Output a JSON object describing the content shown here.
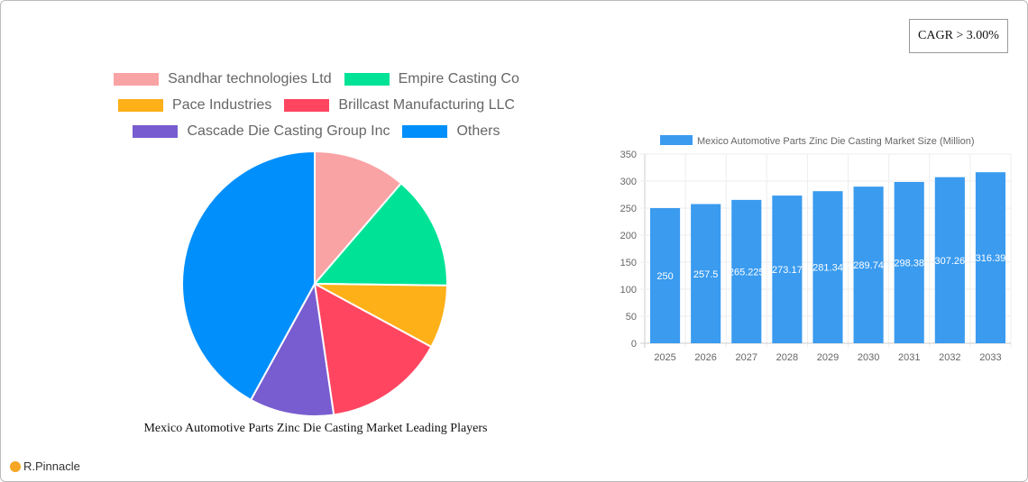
{
  "cagr_label": "CAGR > 3.00%",
  "logo_text": "R.Pinnacle",
  "chart_data": [
    {
      "type": "pie",
      "title": "Mexico Automotive Parts Zinc Die Casting Market Leading Players",
      "legend_position": "top",
      "labels": [
        "Sandhar technologies Ltd",
        "Empire Casting Co",
        "Pace Industries",
        "Brillcast Manufacturing LLC",
        "Cascade Die Casting Group Inc",
        "Others"
      ],
      "values": [
        11.3,
        13.9,
        7.7,
        14.8,
        10.3,
        42.0
      ],
      "colors": [
        "#f9a3a4",
        "#00e396",
        "#feb019",
        "#ff4560",
        "#775dd0",
        "#008ffb"
      ]
    },
    {
      "type": "bar",
      "legend": "Mexico Automotive Parts Zinc Die Casting Market Size (Million)",
      "legend_position": "top",
      "categories": [
        "2025",
        "2026",
        "2027",
        "2028",
        "2029",
        "2030",
        "2031",
        "2032",
        "2033"
      ],
      "values": [
        250,
        257.5,
        265.225,
        273.17,
        281.34,
        289.74,
        298.38,
        307.26,
        316.39
      ],
      "ylim": [
        0,
        350
      ],
      "yticks": [
        0,
        50,
        100,
        150,
        200,
        250,
        300,
        350
      ],
      "grid": true,
      "color": "#3a9bef"
    }
  ]
}
